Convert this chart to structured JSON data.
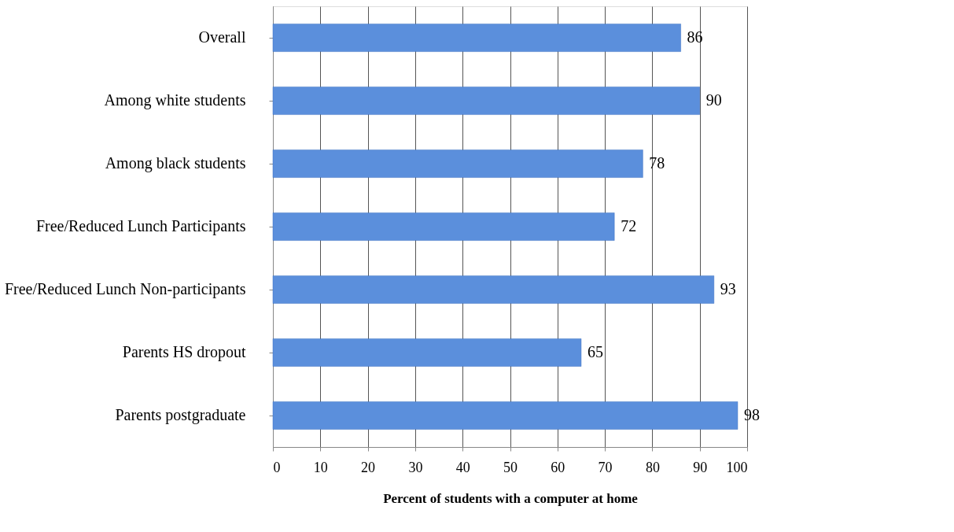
{
  "chart_data": {
    "type": "bar",
    "orientation": "horizontal",
    "xlabel": "Percent of students with a computer at home",
    "categories": [
      "Overall",
      "Among white students",
      "Among black students",
      "Free/Reduced Lunch Participants",
      "Free/Reduced Lunch Non-participants",
      "Parents HS dropout",
      "Parents postgraduate"
    ],
    "values": [
      86,
      90,
      78,
      72,
      93,
      65,
      98
    ],
    "color": "#5b8fdc",
    "xlim": [
      0,
      100
    ],
    "xticks": [
      0,
      10,
      20,
      30,
      40,
      50,
      60,
      70,
      80,
      90,
      100
    ],
    "grid": "x",
    "data_labels": true
  }
}
